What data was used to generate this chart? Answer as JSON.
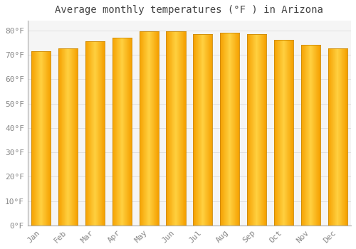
{
  "title": "Average monthly temperatures (°F ) in Arizona",
  "months": [
    "Jan",
    "Feb",
    "Mar",
    "Apr",
    "May",
    "Jun",
    "Jul",
    "Aug",
    "Sep",
    "Oct",
    "Nov",
    "Dec"
  ],
  "values": [
    71.5,
    72.5,
    75.5,
    77.0,
    79.5,
    79.5,
    78.5,
    79.0,
    78.5,
    76.0,
    74.0,
    72.5
  ],
  "bar_color_center": "#FFD000",
  "bar_color_edge": "#F5A000",
  "bar_left_edge_color": "#CC8800",
  "bar_right_edge_color": "#CC8800",
  "background_color": "#ffffff",
  "plot_bg_color": "#f5f5f5",
  "grid_color": "#e0e0e0",
  "ylim_max": 84,
  "title_fontsize": 10,
  "tick_fontsize": 8,
  "font_color": "#888888"
}
